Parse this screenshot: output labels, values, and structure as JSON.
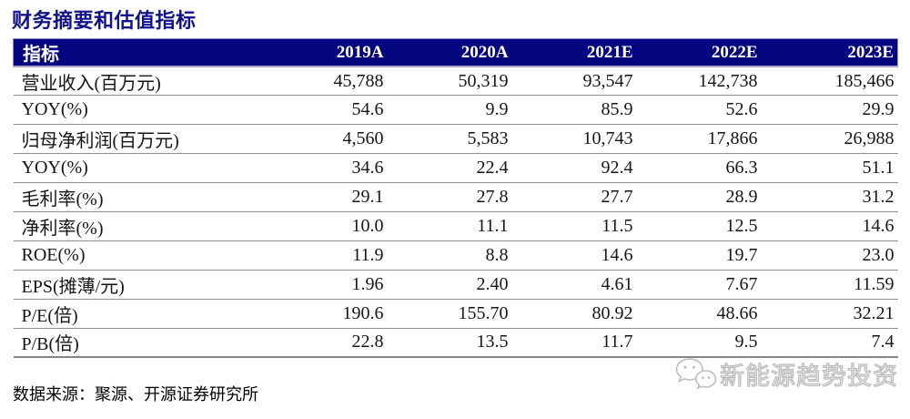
{
  "title": "财务摘要和估值指标",
  "table": {
    "header": [
      "指标",
      "2019A",
      "2020A",
      "2021E",
      "2022E",
      "2023E"
    ],
    "rows": [
      {
        "label": "营业收入(百万元)",
        "values": [
          "45,788",
          "50,319",
          "93,547",
          "142,738",
          "185,466"
        ]
      },
      {
        "label": "YOY(%)",
        "values": [
          "54.6",
          "9.9",
          "85.9",
          "52.6",
          "29.9"
        ]
      },
      {
        "label": "归母净利润(百万元)",
        "values": [
          "4,560",
          "5,583",
          "10,743",
          "17,866",
          "26,988"
        ]
      },
      {
        "label": "YOY(%)",
        "values": [
          "34.6",
          "22.4",
          "92.4",
          "66.3",
          "51.1"
        ]
      },
      {
        "label": "毛利率(%)",
        "values": [
          "29.1",
          "27.8",
          "27.7",
          "28.9",
          "31.2"
        ]
      },
      {
        "label": "净利率(%)",
        "values": [
          "10.0",
          "11.1",
          "11.5",
          "12.5",
          "14.6"
        ]
      },
      {
        "label": "ROE(%)",
        "values": [
          "11.9",
          "8.8",
          "14.6",
          "19.7",
          "23.0"
        ]
      },
      {
        "label": "EPS(摊薄/元)",
        "values": [
          "1.96",
          "2.40",
          "4.61",
          "7.67",
          "11.59"
        ]
      },
      {
        "label": "P/E(倍)",
        "values": [
          "190.6",
          "155.70",
          "80.92",
          "48.66",
          "32.21"
        ]
      },
      {
        "label": "P/B(倍)",
        "values": [
          "22.8",
          "13.5",
          "11.7",
          "9.5",
          "7.4"
        ]
      }
    ]
  },
  "footer": {
    "source": "数据来源：聚源、开源证券研究所"
  },
  "watermark": {
    "icon": "wechat-logo-icon",
    "text": "新能源趋势投资"
  },
  "colors": {
    "header_background": "#050580",
    "title_text": "#12128a",
    "header_text": "#ffffff",
    "row_separator": "#8a8a8a",
    "watermark_gray": "#bdbdbd"
  }
}
